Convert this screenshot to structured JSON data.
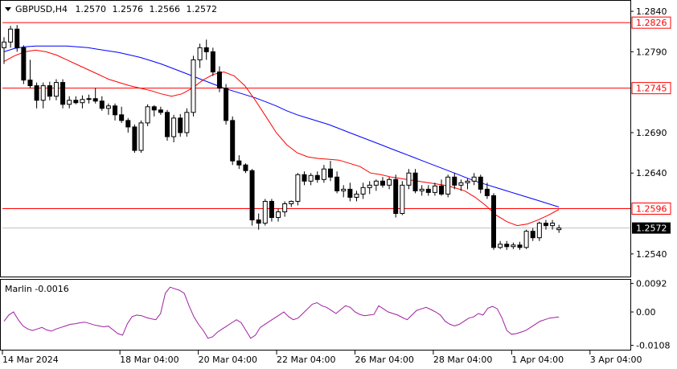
{
  "chart_data": {
    "type": "candlestick",
    "symbol_header": {
      "symbol": "GBPUSD,H4",
      "ohlc": [
        "1.2570",
        "1.2576",
        "1.2566",
        "1.2572"
      ]
    },
    "price_axis": {
      "ylim": [
        1.2512,
        1.2853
      ],
      "ticks": [
        "1.2840",
        "1.2790",
        "1.2690",
        "1.2640",
        "1.2540"
      ],
      "current_price_label": "1.2572"
    },
    "x_axis": {
      "labels": [
        "14 Mar 2024",
        "18 Mar 04:00",
        "20 Mar 04:00",
        "22 Mar 04:00",
        "26 Mar 04:00",
        "28 Mar 04:00",
        "1 Apr 04:00",
        "3 Apr 04:00"
      ],
      "label_bar_index": [
        0,
        18,
        30,
        42,
        54,
        66,
        78,
        90
      ]
    },
    "horizontal_levels": [
      {
        "value": 1.2826,
        "label": "1.2826",
        "color": "#ff0000"
      },
      {
        "value": 1.2745,
        "label": "1.2745",
        "color": "#ff0000"
      },
      {
        "value": 1.2596,
        "label": "1.2596",
        "color": "#ff0000"
      }
    ],
    "candles": [
      [
        1.2795,
        1.2808,
        1.2775,
        1.2802
      ],
      [
        1.2802,
        1.2822,
        1.2795,
        1.2818
      ],
      [
        1.2818,
        1.2823,
        1.279,
        1.2795
      ],
      [
        1.2795,
        1.2798,
        1.275,
        1.2755
      ],
      [
        1.2755,
        1.278,
        1.2745,
        1.2748
      ],
      [
        1.2748,
        1.2752,
        1.272,
        1.273
      ],
      [
        1.273,
        1.2752,
        1.272,
        1.2748
      ],
      [
        1.2748,
        1.2753,
        1.273,
        1.2735
      ],
      [
        1.2735,
        1.2756,
        1.273,
        1.2752
      ],
      [
        1.2752,
        1.2756,
        1.272,
        1.2725
      ],
      [
        1.2725,
        1.2735,
        1.272,
        1.273
      ],
      [
        1.273,
        1.2735,
        1.2725,
        1.2727
      ],
      [
        1.2727,
        1.2736,
        1.272,
        1.2731
      ],
      [
        1.2731,
        1.2737,
        1.2726,
        1.2732
      ],
      [
        1.2732,
        1.2745,
        1.2726,
        1.2729
      ],
      [
        1.2729,
        1.2735,
        1.2717,
        1.272
      ],
      [
        1.272,
        1.2726,
        1.2712,
        1.2723
      ],
      [
        1.2723,
        1.2726,
        1.2705,
        1.2712
      ],
      [
        1.2712,
        1.2722,
        1.2702,
        1.2705
      ],
      [
        1.2705,
        1.2708,
        1.269,
        1.2697
      ],
      [
        1.2697,
        1.27,
        1.2665,
        1.2668
      ],
      [
        1.2668,
        1.2705,
        1.2665,
        1.2702
      ],
      [
        1.2702,
        1.2725,
        1.2698,
        1.2722
      ],
      [
        1.2722,
        1.2724,
        1.271,
        1.2718
      ],
      [
        1.2718,
        1.2722,
        1.2712,
        1.2715
      ],
      [
        1.2715,
        1.2718,
        1.268,
        1.2685
      ],
      [
        1.2685,
        1.2712,
        1.2678,
        1.2708
      ],
      [
        1.2708,
        1.2713,
        1.2685,
        1.269
      ],
      [
        1.269,
        1.272,
        1.2685,
        1.2715
      ],
      [
        1.2715,
        1.2785,
        1.271,
        1.278
      ],
      [
        1.278,
        1.28,
        1.277,
        1.2795
      ],
      [
        1.2795,
        1.2805,
        1.278,
        1.279
      ],
      [
        1.279,
        1.2795,
        1.276,
        1.2765
      ],
      [
        1.2765,
        1.2772,
        1.274,
        1.2745
      ],
      [
        1.2745,
        1.275,
        1.27,
        1.2705
      ],
      [
        1.2705,
        1.271,
        1.265,
        1.2655
      ],
      [
        1.2655,
        1.2662,
        1.2645,
        1.265
      ],
      [
        1.265,
        1.2652,
        1.264,
        1.2643
      ],
      [
        1.2643,
        1.2645,
        1.2575,
        1.2582
      ],
      [
        1.2582,
        1.259,
        1.257,
        1.2578
      ],
      [
        1.2578,
        1.2608,
        1.2575,
        1.2605
      ],
      [
        1.2605,
        1.2608,
        1.258,
        1.2585
      ],
      [
        1.2585,
        1.2596,
        1.258,
        1.2592
      ],
      [
        1.2592,
        1.2605,
        1.2586,
        1.2602
      ],
      [
        1.2602,
        1.2606,
        1.2598,
        1.2605
      ],
      [
        1.2605,
        1.264,
        1.26,
        1.2638
      ],
      [
        1.2638,
        1.2642,
        1.2625,
        1.263
      ],
      [
        1.263,
        1.264,
        1.2625,
        1.2637
      ],
      [
        1.2637,
        1.2642,
        1.2628,
        1.2632
      ],
      [
        1.2632,
        1.265,
        1.2628,
        1.2645
      ],
      [
        1.2645,
        1.2655,
        1.263,
        1.2635
      ],
      [
        1.2635,
        1.2642,
        1.2615,
        1.2618
      ],
      [
        1.2618,
        1.2625,
        1.261,
        1.262
      ],
      [
        1.262,
        1.2628,
        1.2605,
        1.261
      ],
      [
        1.261,
        1.2618,
        1.2605,
        1.2614
      ],
      [
        1.2614,
        1.2628,
        1.2608,
        1.2622
      ],
      [
        1.2622,
        1.263,
        1.2614,
        1.2625
      ],
      [
        1.2625,
        1.2632,
        1.2618,
        1.263
      ],
      [
        1.263,
        1.2635,
        1.2622,
        1.2625
      ],
      [
        1.2625,
        1.2635,
        1.262,
        1.2632
      ],
      [
        1.2632,
        1.2638,
        1.2585,
        1.259
      ],
      [
        1.259,
        1.263,
        1.2588,
        1.2625
      ],
      [
        1.2625,
        1.2645,
        1.262,
        1.264
      ],
      [
        1.264,
        1.2645,
        1.2615,
        1.2618
      ],
      [
        1.2618,
        1.2625,
        1.2612,
        1.262
      ],
      [
        1.262,
        1.2625,
        1.2612,
        1.2616
      ],
      [
        1.2616,
        1.2628,
        1.2612,
        1.2624
      ],
      [
        1.2624,
        1.2632,
        1.2612,
        1.2614
      ],
      [
        1.2614,
        1.2638,
        1.261,
        1.2635
      ],
      [
        1.2635,
        1.264,
        1.262,
        1.2625
      ],
      [
        1.2625,
        1.2632,
        1.2618,
        1.2628
      ],
      [
        1.2628,
        1.2633,
        1.262,
        1.263
      ],
      [
        1.263,
        1.264,
        1.2625,
        1.2635
      ],
      [
        1.2635,
        1.2638,
        1.2615,
        1.262
      ],
      [
        1.262,
        1.2628,
        1.2608,
        1.2612
      ],
      [
        1.2612,
        1.2615,
        1.2545,
        1.2548
      ],
      [
        1.2548,
        1.2556,
        1.2546,
        1.2552
      ],
      [
        1.2552,
        1.2556,
        1.2545,
        1.2549
      ],
      [
        1.2549,
        1.2554,
        1.2546,
        1.2551
      ],
      [
        1.2551,
        1.2555,
        1.2545,
        1.2548
      ],
      [
        1.2548,
        1.257,
        1.2546,
        1.2568
      ],
      [
        1.2568,
        1.2572,
        1.2556,
        1.256
      ],
      [
        1.256,
        1.258,
        1.2556,
        1.2578
      ],
      [
        1.2578,
        1.2582,
        1.257,
        1.2575
      ],
      [
        1.2575,
        1.2582,
        1.257,
        1.2578
      ],
      [
        1.257,
        1.2576,
        1.2566,
        1.2572
      ]
    ],
    "series": [
      {
        "name": "",
        "type": "line",
        "color": "#0000ff",
        "values": [
          1.279,
          1.2794,
          1.2796,
          1.2797,
          1.2797,
          1.2797,
          1.2797,
          1.2796,
          1.2795,
          1.2793,
          1.2791,
          1.2789,
          1.2786,
          1.2783,
          1.2779,
          1.2775,
          1.277,
          1.2765,
          1.276,
          1.2755,
          1.275,
          1.2745,
          1.2741,
          1.2737,
          1.2733,
          1.2728,
          1.2723,
          1.2717,
          1.2712,
          1.2708,
          1.2704,
          1.27,
          1.2695,
          1.269,
          1.2685,
          1.268,
          1.2675,
          1.267,
          1.2665,
          1.266,
          1.2655,
          1.265,
          1.2645,
          1.264,
          1.2635,
          1.263,
          1.2626,
          1.2622,
          1.2618,
          1.2614,
          1.261,
          1.2606,
          1.2602,
          1.2598
        ]
      },
      {
        "name": "",
        "type": "line",
        "color": "#ff0000",
        "values": [
          1.2778,
          1.2785,
          1.279,
          1.2792,
          1.279,
          1.2786,
          1.278,
          1.2774,
          1.2768,
          1.2762,
          1.2756,
          1.2752,
          1.2748,
          1.2745,
          1.2742,
          1.2738,
          1.2735,
          1.2738,
          1.2745,
          1.2755,
          1.2762,
          1.2765,
          1.276,
          1.2748,
          1.273,
          1.271,
          1.269,
          1.2675,
          1.2665,
          1.266,
          1.2658,
          1.2657,
          1.2656,
          1.2652,
          1.2648,
          1.264,
          1.2638,
          1.2635,
          1.2633,
          1.2631,
          1.2629,
          1.2627,
          1.2625,
          1.2622,
          1.2618,
          1.261,
          1.26,
          1.2588,
          1.258,
          1.2575,
          1.2577,
          1.2582,
          1.2588,
          1.2595
        ]
      },
      {
        "name": "",
        "type": "line",
        "color": "#ff0000",
        "note_pad": "",
        "values": []
      }
    ],
    "indicator": {
      "label": "Marlin -0.0016",
      "ylim": [
        -0.0122,
        0.0104
      ],
      "ticks": [
        "0.0092",
        "0.00",
        "-0.0108"
      ],
      "color": "#a020a0",
      "values": [
        -0.003,
        -0.001,
        0.0,
        -0.0025,
        -0.0045,
        -0.0055,
        -0.006,
        -0.0055,
        -0.005,
        -0.0058,
        -0.0062,
        -0.0055,
        -0.005,
        -0.0045,
        -0.004,
        -0.0038,
        -0.0035,
        -0.0033,
        -0.0037,
        -0.0042,
        -0.0045,
        -0.0048,
        -0.0046,
        -0.0058,
        -0.007,
        -0.0075,
        -0.0038,
        -0.0015,
        -0.001,
        -0.0012,
        -0.0018,
        -0.0022,
        -0.0025,
        -0.0005,
        0.006,
        0.008,
        0.0075,
        0.007,
        0.006,
        0.002,
        -0.0015,
        -0.004,
        -0.006,
        -0.0085,
        -0.008,
        -0.0065,
        -0.0055,
        -0.0045,
        -0.0035,
        -0.0025,
        -0.0035,
        -0.006,
        -0.0085,
        -0.0075,
        -0.005,
        -0.004,
        -0.003,
        -0.002,
        -0.001,
        0.0,
        -0.0015,
        -0.0025,
        -0.002,
        -0.0005,
        0.001,
        0.0025,
        0.003,
        0.002,
        0.0015,
        0.0005,
        -0.0005,
        0.0008,
        0.002,
        0.0015,
        0.0,
        -0.0008,
        -0.0012,
        -0.001,
        -0.0008,
        0.002,
        0.001,
        0.0,
        -0.0005,
        -0.001,
        -0.0018,
        -0.0025,
        -0.001,
        0.0005,
        0.001,
        0.0015,
        0.0008,
        0.0,
        -0.001,
        -0.003,
        -0.004,
        -0.0045,
        -0.004,
        -0.003,
        -0.002,
        -0.0016,
        -0.0005,
        -0.001,
        0.0012,
        0.0018,
        0.001,
        -0.002,
        -0.006,
        -0.0072,
        -0.007,
        -0.0065,
        -0.006,
        -0.005,
        -0.004,
        -0.003,
        -0.0025,
        -0.002,
        -0.0018,
        -0.0016
      ]
    }
  }
}
